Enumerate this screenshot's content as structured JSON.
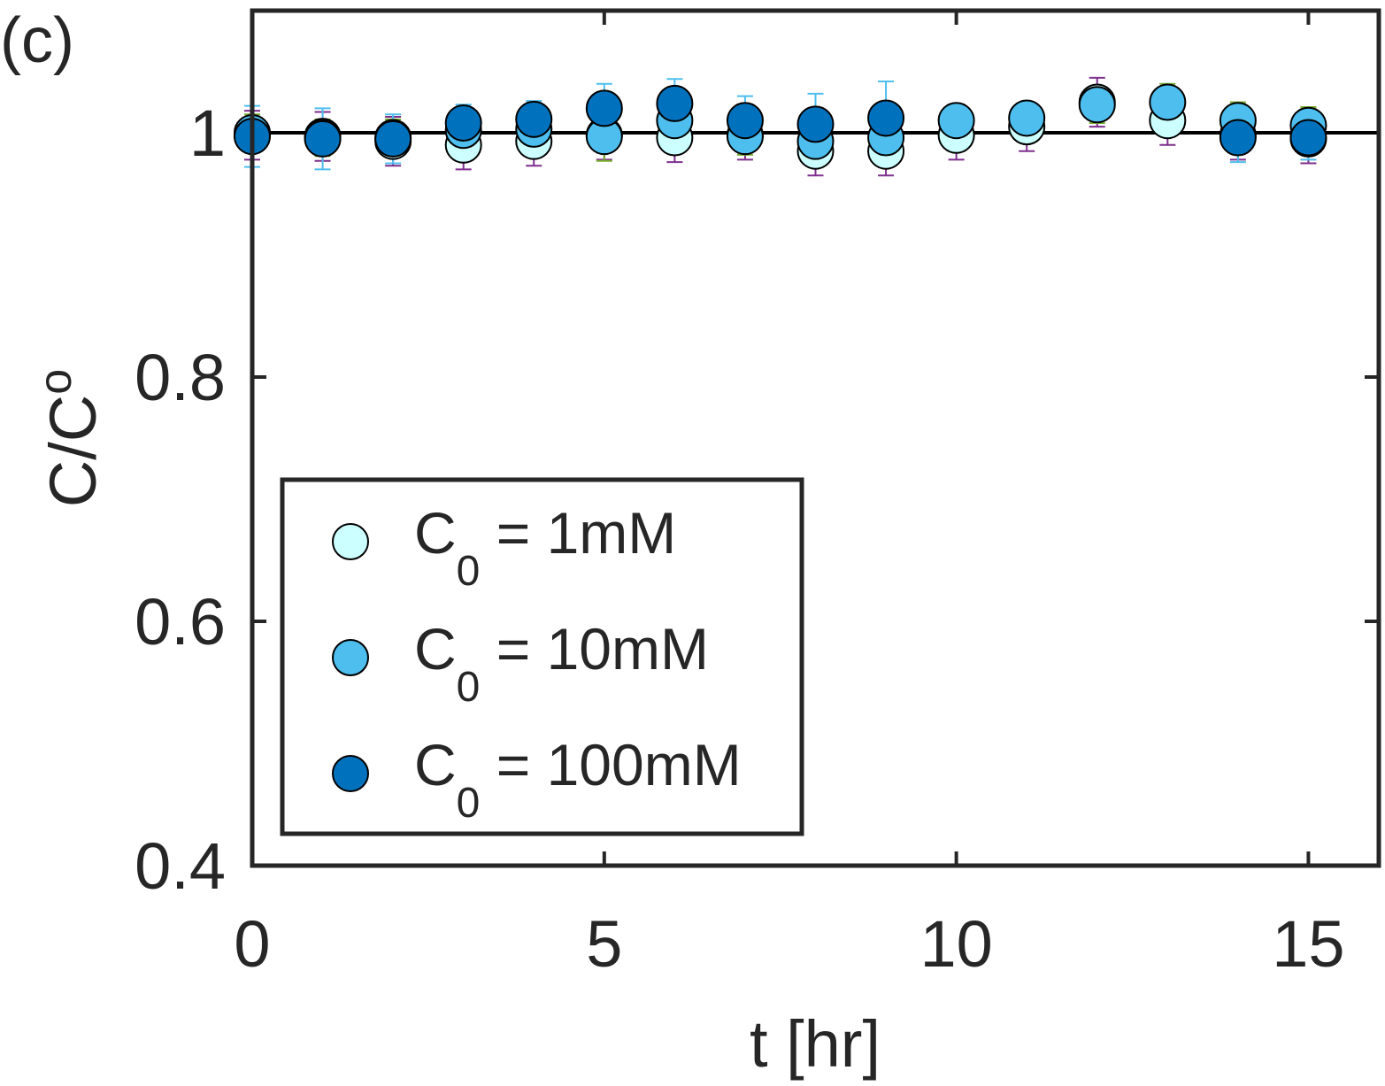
{
  "panel_label": "(c)",
  "chart_data": {
    "type": "scatter",
    "xlabel": "t [hr]",
    "ylabel": {
      "main": "C/C",
      "sub": "o"
    },
    "xlim": [
      0,
      16
    ],
    "ylim": [
      0.4,
      1.1
    ],
    "xticks": [
      0,
      5,
      10,
      15
    ],
    "yticks": [
      0.4,
      0.6,
      0.8,
      1
    ],
    "xtick_labels": [
      "0",
      "5",
      "10",
      "15"
    ],
    "ytick_labels": [
      "0.4",
      "0.6",
      "0.8",
      "1"
    ],
    "reference_line": {
      "y": 1
    },
    "legend": {
      "placement": "lower-left"
    },
    "series": [
      {
        "name": "C0 = 1mM",
        "legend_main": "C",
        "legend_sub": "0",
        "legend_rest": " = 1mM",
        "color": "#CCFFFF",
        "x": [
          0,
          1,
          2,
          3,
          4,
          5,
          6,
          7,
          8,
          9,
          10,
          11,
          12,
          13,
          14,
          15
        ],
        "y": [
          0.998,
          0.997,
          0.993,
          0.99,
          0.993,
          0.998,
          0.996,
          0.998,
          0.985,
          0.985,
          0.998,
          1.005,
          1.025,
          1.01,
          0.998,
          0.995
        ],
        "err": [
          0.02,
          0.02,
          0.02,
          0.02,
          0.02,
          0.02,
          0.02,
          0.02,
          0.02,
          0.02,
          0.02,
          0.02,
          0.02,
          0.02,
          0.02,
          0.02
        ]
      },
      {
        "name": "C0 = 10mM",
        "legend_main": "C",
        "legend_sub": "0",
        "legend_rest": " = 10mM",
        "color": "#4DBEEE",
        "x": [
          0,
          1,
          2,
          3,
          4,
          5,
          6,
          7,
          8,
          9,
          10,
          11,
          12,
          13,
          14,
          15
        ],
        "y": [
          1.0,
          0.996,
          0.996,
          1.002,
          1.003,
          0.997,
          1.01,
          0.997,
          0.993,
          0.996,
          1.01,
          1.012,
          1.023,
          1.025,
          1.01,
          1.006
        ],
        "err": [
          0.015,
          0.015,
          0.015,
          0.015,
          0.015,
          0.02,
          0.015,
          0.015,
          0.015,
          0.015,
          0.01,
          0.01,
          0.015,
          0.015,
          0.015,
          0.015
        ]
      },
      {
        "name": "C0 = 100mM",
        "legend_main": "C",
        "legend_sub": "0",
        "legend_rest": " = 100mM",
        "color": "#0072BD",
        "x": [
          0,
          1,
          2,
          3,
          4,
          5,
          6,
          7,
          8,
          9,
          15,
          14
        ],
        "y": [
          0.997,
          0.995,
          0.995,
          1.008,
          1.011,
          1.02,
          1.024,
          1.01,
          1.007,
          1.012,
          0.996,
          0.996
        ],
        "err": [
          0.025,
          0.025,
          0.02,
          0.015,
          0.015,
          0.02,
          0.02,
          0.02,
          0.025,
          0.03,
          0.018,
          0.02
        ]
      }
    ]
  }
}
